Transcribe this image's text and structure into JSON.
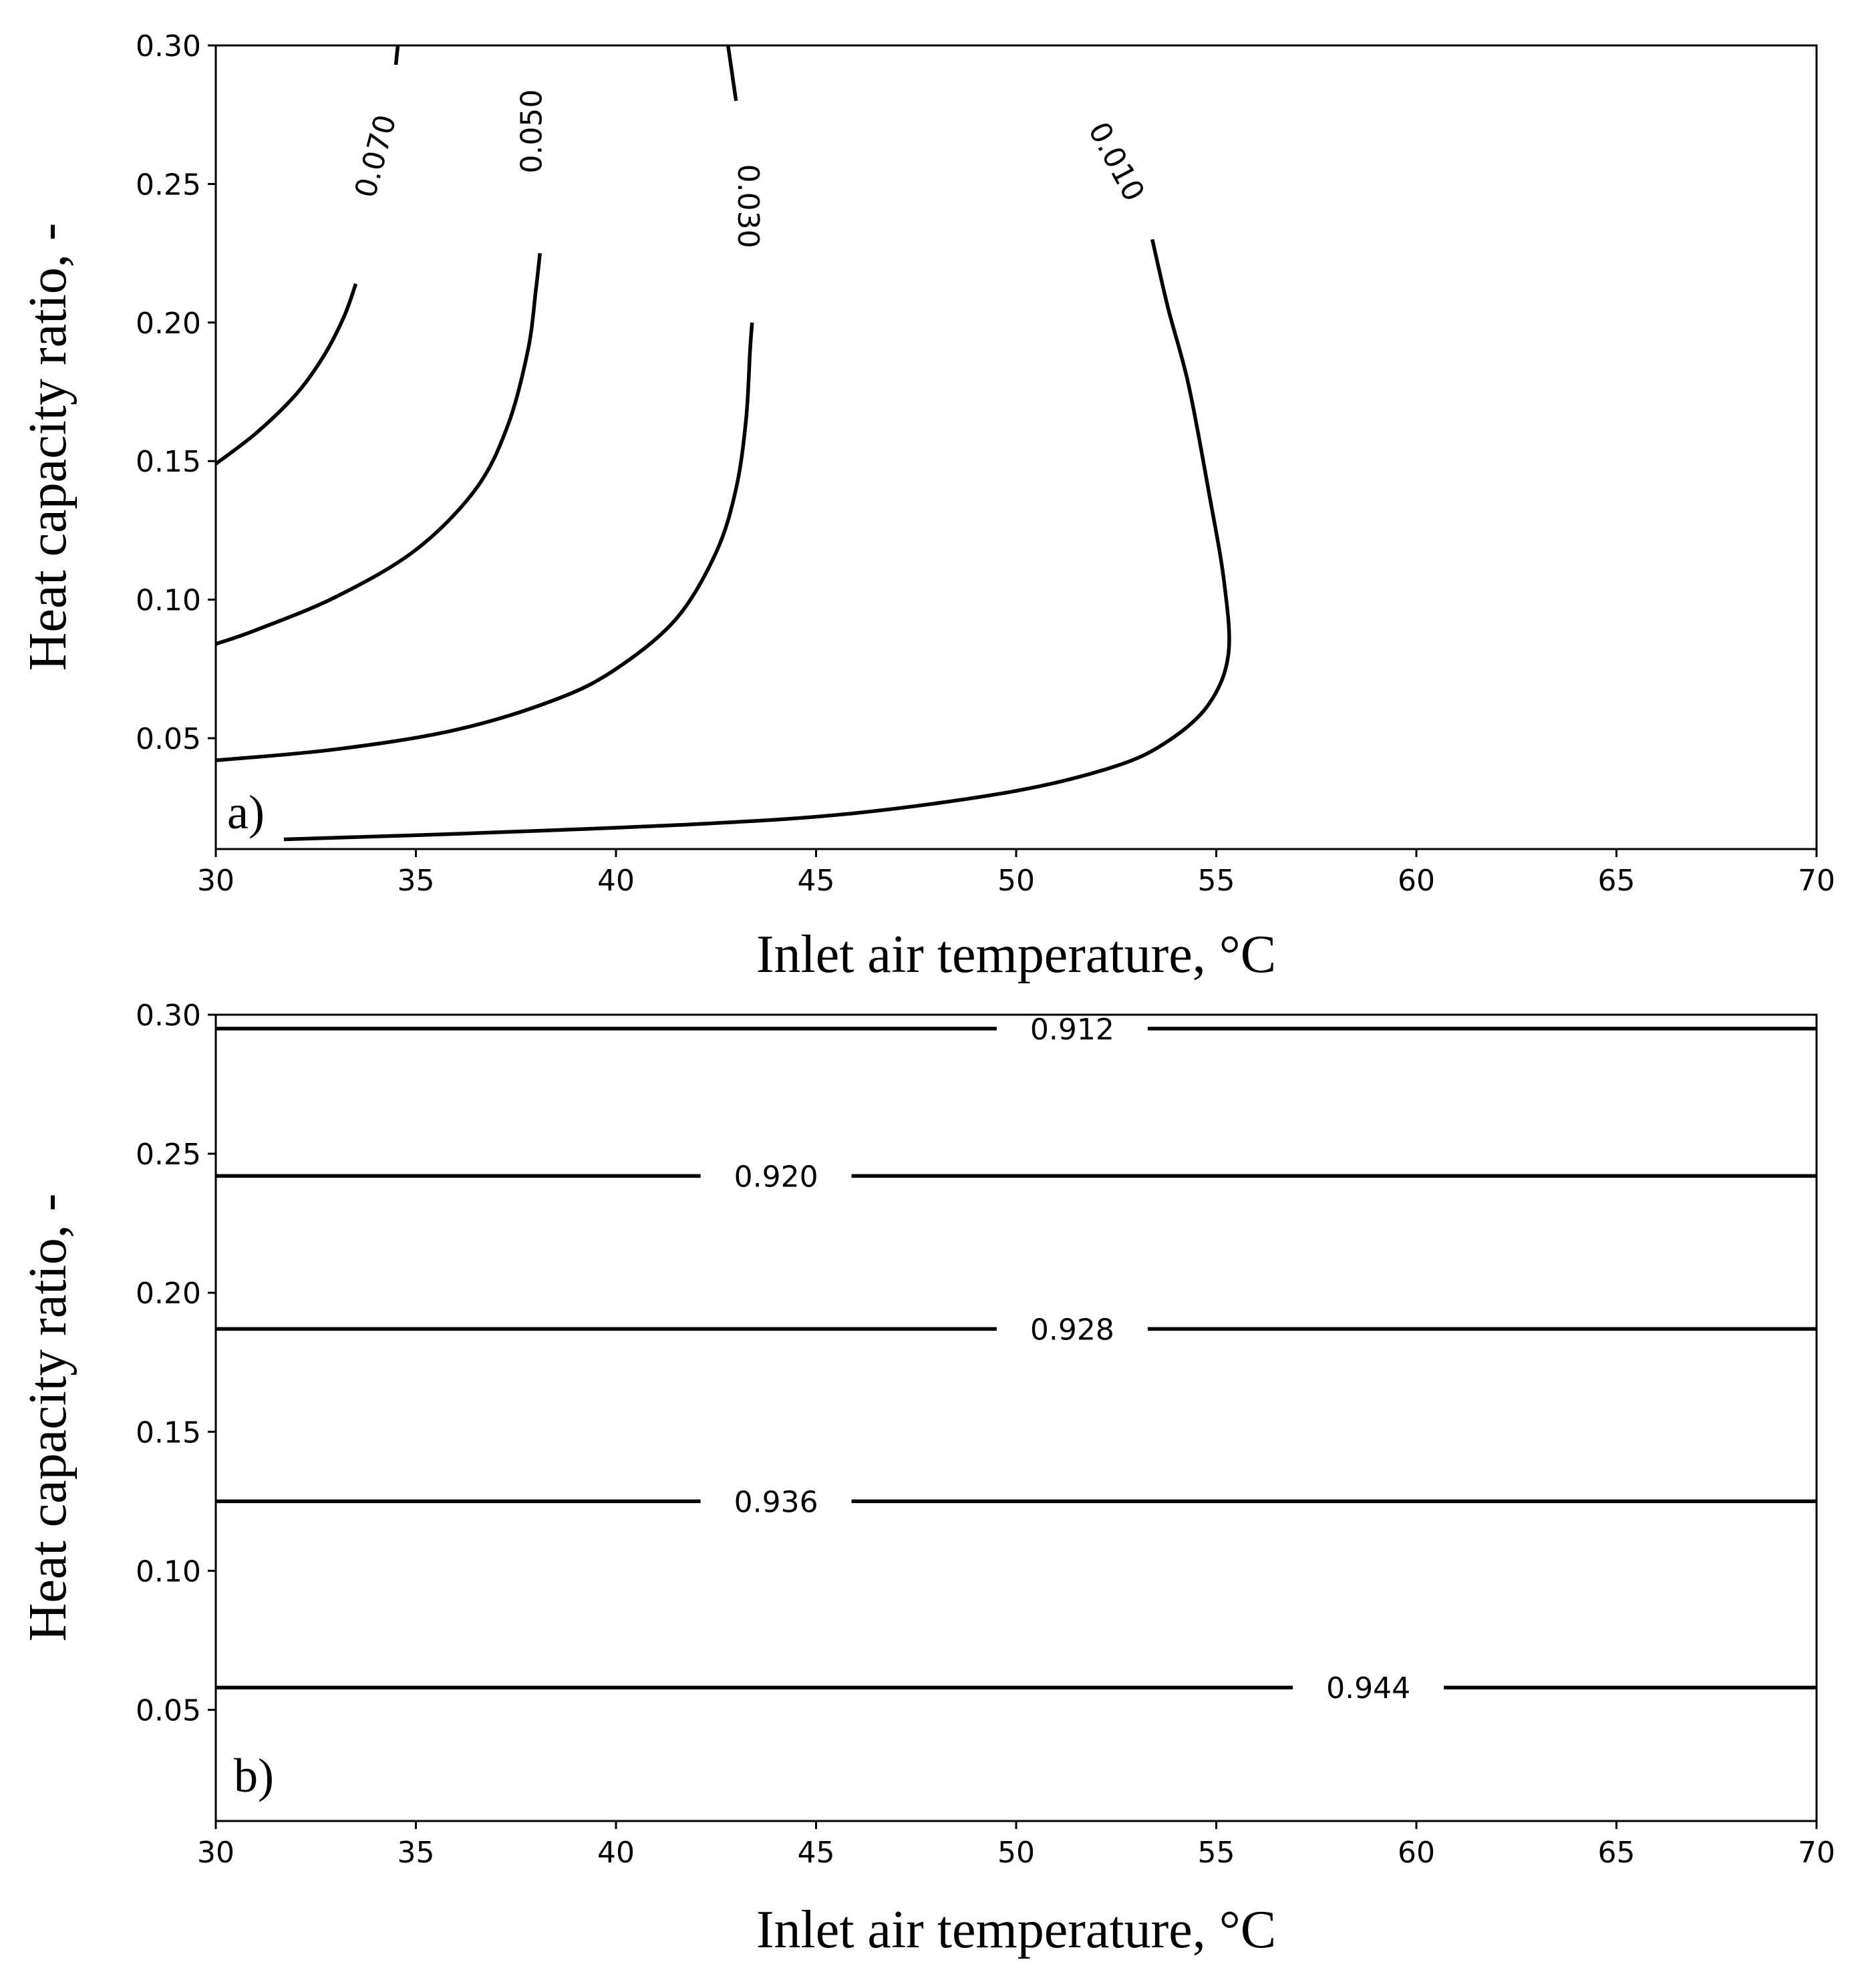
{
  "chart_data": [
    {
      "panel": "a)",
      "type": "line",
      "xlabel": "Inlet air temperature, °C",
      "ylabel": "Heat capacity ratio, -",
      "xlim": [
        30,
        70
      ],
      "ylim": [
        0.01,
        0.3
      ],
      "xticks": [
        30,
        35,
        40,
        45,
        50,
        55,
        60,
        65,
        70
      ],
      "xtick_labels": [
        "30",
        "35",
        "40",
        "45",
        "50",
        "55",
        "60",
        "65",
        "70"
      ],
      "yticks": [
        0.05,
        0.1,
        0.15,
        0.2,
        0.25,
        0.3
      ],
      "ytick_labels": [
        "0.05",
        "0.10",
        "0.15",
        "0.20",
        "0.25",
        "0.30"
      ],
      "series": [
        {
          "name": "0.070",
          "label": "0.070",
          "label_at": [
            34.0,
            0.26
          ],
          "label_angle": -75,
          "segments": [
            [
              [
                30.0,
                0.149
              ],
              [
                31.0,
                0.16
              ],
              [
                32.0,
                0.174
              ],
              [
                32.7,
                0.188
              ],
              [
                33.2,
                0.202
              ],
              [
                33.5,
                0.214
              ]
            ],
            [
              [
                34.5,
                0.293
              ],
              [
                34.55,
                0.3
              ]
            ]
          ]
        },
        {
          "name": "0.050",
          "label": "0.050",
          "label_at": [
            37.9,
            0.269
          ],
          "label_angle": -90,
          "segments": [
            [
              [
                30.0,
                0.084
              ],
              [
                31.0,
                0.089
              ],
              [
                33.0,
                0.101
              ],
              [
                35.0,
                0.118
              ],
              [
                36.5,
                0.14
              ],
              [
                37.3,
                0.163
              ],
              [
                37.8,
                0.19
              ],
              [
                38.0,
                0.212
              ],
              [
                38.1,
                0.225
              ]
            ]
          ]
        },
        {
          "name": "0.030",
          "label": "0.030",
          "label_at": [
            43.3,
            0.242
          ],
          "label_angle": 90,
          "segments": [
            [
              [
                30.0,
                0.042
              ],
              [
                33.0,
                0.046
              ],
              [
                36.0,
                0.053
              ],
              [
                38.5,
                0.064
              ],
              [
                40.0,
                0.075
              ],
              [
                41.5,
                0.093
              ],
              [
                42.5,
                0.117
              ],
              [
                43.0,
                0.14
              ],
              [
                43.25,
                0.165
              ],
              [
                43.35,
                0.19
              ],
              [
                43.4,
                0.2
              ]
            ],
            [
              [
                43.0,
                0.28
              ],
              [
                42.8,
                0.3
              ]
            ]
          ]
        },
        {
          "name": "0.010",
          "label": "0.010",
          "label_at": [
            52.5,
            0.258
          ],
          "label_angle": 62,
          "segments": [
            [
              [
                31.7,
                0.0135
              ],
              [
                36.0,
                0.0155
              ],
              [
                42.0,
                0.019
              ],
              [
                46.0,
                0.023
              ],
              [
                50.0,
                0.031
              ],
              [
                52.5,
                0.04
              ],
              [
                53.8,
                0.049
              ],
              [
                54.8,
                0.062
              ],
              [
                55.3,
                0.08
              ],
              [
                55.2,
                0.106
              ],
              [
                54.8,
                0.14
              ],
              [
                54.3,
                0.178
              ],
              [
                53.8,
                0.205
              ],
              [
                53.4,
                0.23
              ]
            ]
          ]
        }
      ]
    },
    {
      "panel": "b)",
      "type": "line",
      "xlabel": "Inlet air temperature, °C",
      "ylabel": "Heat capacity ratio, -",
      "xlim": [
        30,
        70
      ],
      "ylim": [
        0.01,
        0.3
      ],
      "xticks": [
        30,
        35,
        40,
        45,
        50,
        55,
        60,
        65,
        70
      ],
      "xtick_labels": [
        "30",
        "35",
        "40",
        "45",
        "50",
        "55",
        "60",
        "65",
        "70"
      ],
      "yticks": [
        0.05,
        0.1,
        0.15,
        0.2,
        0.25,
        0.3
      ],
      "ytick_labels": [
        "0.05",
        "0.10",
        "0.15",
        "0.20",
        "0.25",
        "0.30"
      ],
      "series": [
        {
          "name": "0.912",
          "label": "0.912",
          "y": 0.295,
          "label_x": 51.4
        },
        {
          "name": "0.920",
          "label": "0.920",
          "y": 0.242,
          "label_x": 44.0
        },
        {
          "name": "0.928",
          "label": "0.928",
          "y": 0.187,
          "label_x": 51.4
        },
        {
          "name": "0.936",
          "label": "0.936",
          "y": 0.125,
          "label_x": 44.0
        },
        {
          "name": "0.944",
          "label": "0.944",
          "y": 0.058,
          "label_x": 58.8
        }
      ]
    }
  ]
}
